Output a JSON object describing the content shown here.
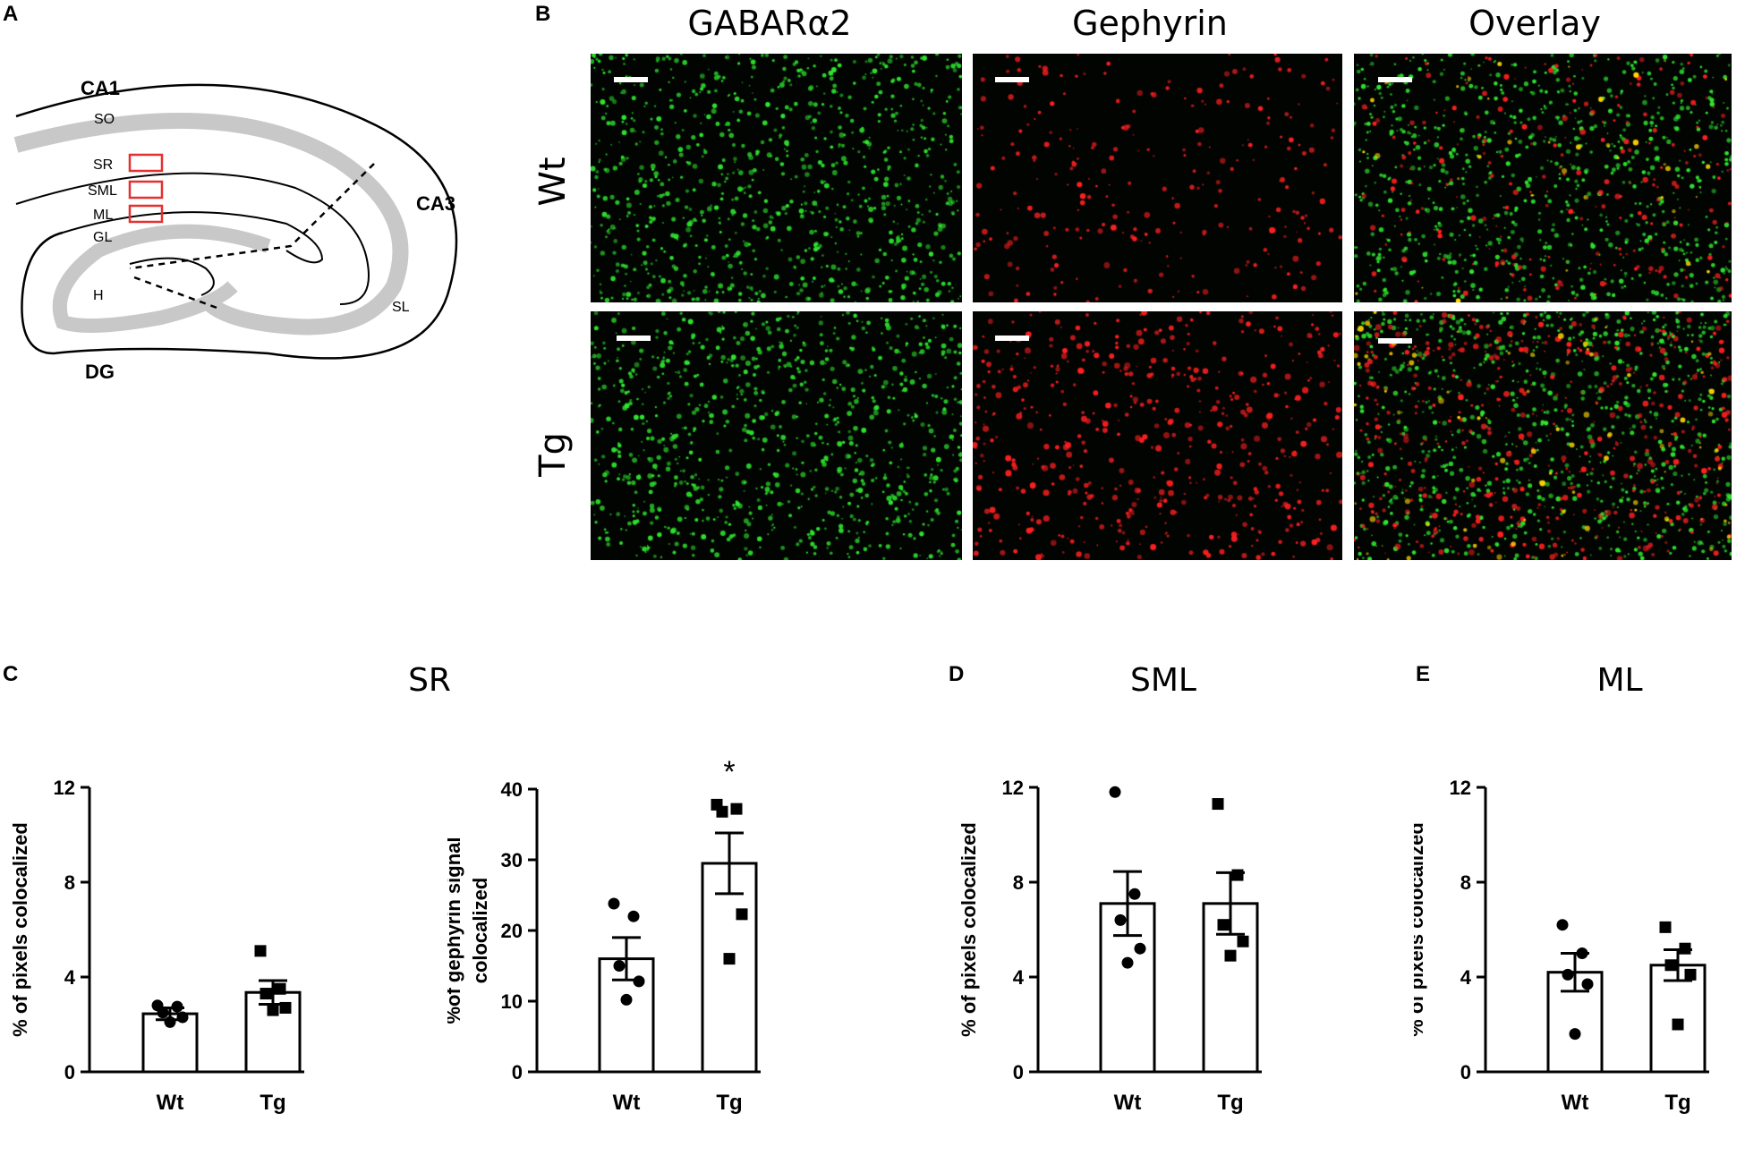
{
  "panels": {
    "a": "A",
    "b": "B",
    "c": "C",
    "d": "D",
    "e": "E"
  },
  "schematic": {
    "region_labels": {
      "ca1": "CA1",
      "ca3": "CA3",
      "dg": "DG",
      "so": "SO",
      "sr": "SR",
      "sml": "SML",
      "ml": "ML",
      "gl": "GL",
      "h": "H",
      "sl": "SL"
    },
    "colors": {
      "layer": "#c8c8c8",
      "roi": "#e53030",
      "outline": "#000000"
    }
  },
  "microscopy": {
    "columns": [
      "GABARα2",
      "Gephyrin",
      "Overlay"
    ],
    "rows": [
      "Wt",
      "Tg"
    ],
    "colors": {
      "gaba": "#2ee62e",
      "gephyrin": "#ff2020",
      "overlap": "#ffd700"
    }
  },
  "section_titles": {
    "sr": "SR",
    "sml": "SML",
    "ml": "ML"
  },
  "chart_data": [
    {
      "type": "bar",
      "panel": "C",
      "categories": [
        "Wt",
        "Tg"
      ],
      "values": [
        2.45,
        3.35
      ],
      "errors": [
        0.25,
        0.5
      ],
      "points": [
        [
          2.8,
          2.75,
          2.5,
          2.3,
          2.1
        ],
        [
          5.1,
          3.5,
          3.3,
          2.7,
          2.6
        ]
      ],
      "markers": [
        "circle",
        "square"
      ],
      "ylabel": "% of pixels colocalized",
      "ylim": [
        0,
        12
      ],
      "yticks": [
        0,
        4,
        8,
        12
      ],
      "ytick_labels": [
        "0",
        "4",
        "8",
        "12"
      ],
      "annotation": ""
    },
    {
      "type": "bar",
      "panel": "C",
      "categories": [
        "Wt",
        "Tg"
      ],
      "values": [
        16.0,
        29.5
      ],
      "errors": [
        3.0,
        4.3
      ],
      "points": [
        [
          23.8,
          22.0,
          15.0,
          12.8,
          10.2
        ],
        [
          37.8,
          37.2,
          36.8,
          22.3,
          16.0
        ]
      ],
      "markers": [
        "circle",
        "square"
      ],
      "ylabel_lines": [
        "%of gephyrin signal",
        "colocalized"
      ],
      "ylim": [
        0,
        40
      ],
      "yticks": [
        0,
        10,
        20,
        30,
        40
      ],
      "ytick_labels": [
        "0",
        "10",
        "20",
        "30",
        "40"
      ],
      "annotation": "*"
    },
    {
      "type": "bar",
      "panel": "D",
      "categories": [
        "Wt",
        "Tg"
      ],
      "values": [
        7.1,
        7.1
      ],
      "errors": [
        1.35,
        1.3
      ],
      "points": [
        [
          11.8,
          7.5,
          6.4,
          5.2,
          4.6
        ],
        [
          11.3,
          8.3,
          6.2,
          5.5,
          4.9
        ]
      ],
      "markers": [
        "circle",
        "square"
      ],
      "ylabel": "% of pixels colocalized",
      "ylim": [
        0,
        12
      ],
      "yticks": [
        0,
        4,
        8,
        12
      ],
      "ytick_labels": [
        "0",
        "4",
        "8",
        "12"
      ],
      "annotation": ""
    },
    {
      "type": "bar",
      "panel": "E",
      "categories": [
        "Wt",
        "Tg"
      ],
      "values": [
        4.2,
        4.5
      ],
      "errors": [
        0.8,
        0.65
      ],
      "points": [
        [
          6.2,
          5.0,
          4.1,
          3.7,
          1.6
        ],
        [
          6.1,
          5.2,
          4.5,
          4.1,
          2.0
        ]
      ],
      "markers": [
        "circle",
        "square"
      ],
      "ylabel": "% of pixels colocalized",
      "ylim": [
        0,
        12
      ],
      "yticks": [
        0,
        4,
        8,
        12
      ],
      "ytick_labels": [
        "0",
        "4",
        "8",
        "12"
      ],
      "annotation": ""
    }
  ]
}
